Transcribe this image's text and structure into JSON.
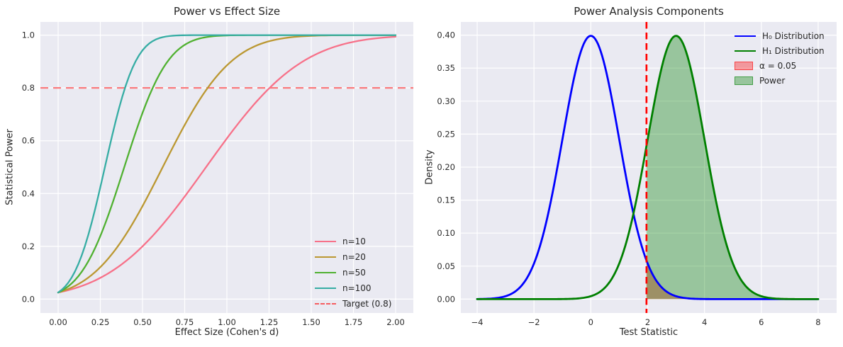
{
  "figure": {
    "background": "#ffffff",
    "axes_background": "#eaeaf2",
    "grid_color": "#ffffff",
    "text_color": "#262626",
    "tick_label_color": "#2b2b2b"
  },
  "chart_data": [
    {
      "type": "line",
      "title": "Power vs Effect Size",
      "xlabel": "Effect Size (Cohen's d)",
      "ylabel": "Statistical Power",
      "xlim": [
        0,
        2
      ],
      "ylim": [
        0,
        1
      ],
      "grid": true,
      "legend_position": "lower right",
      "xticks": {
        "values": [
          0,
          0.25,
          0.5,
          0.75,
          1.0,
          1.25,
          1.5,
          1.75,
          2.0
        ],
        "labels": [
          "0.00",
          "0.25",
          "0.50",
          "0.75",
          "1.00",
          "1.25",
          "1.50",
          "1.75",
          "2.00"
        ]
      },
      "yticks": {
        "values": [
          0,
          0.2,
          0.4,
          0.6,
          0.8,
          1.0
        ],
        "labels": [
          "0.0",
          "0.2",
          "0.4",
          "0.6",
          "0.8",
          "1.0"
        ]
      },
      "alpha": 0.05,
      "z_crit": 1.96,
      "x": [
        0,
        0.25,
        0.5,
        0.75,
        1.0,
        1.25,
        1.5,
        1.75,
        2.0
      ],
      "series": [
        {
          "name": "n=10",
          "n": 10,
          "color": "#f77189",
          "values": [
            0.025,
            0.081,
            0.2,
            0.389,
            0.609,
            0.798,
            0.918,
            0.975,
            0.994
          ]
        },
        {
          "name": "n=20",
          "n": 20,
          "color": "#bb9832",
          "values": [
            0.025,
            0.121,
            0.352,
            0.66,
            0.885,
            0.977,
            0.997,
            1.0,
            1.0
          ]
        },
        {
          "name": "n=50",
          "n": 50,
          "color": "#50b131",
          "values": [
            0.025,
            0.239,
            0.705,
            0.963,
            0.999,
            1.0,
            1.0,
            1.0,
            1.0
          ]
        },
        {
          "name": "n=100",
          "n": 100,
          "color": "#36ada4",
          "values": [
            0.025,
            0.424,
            0.942,
            1.0,
            1.0,
            1.0,
            1.0,
            1.0,
            1.0
          ]
        }
      ],
      "target_line": {
        "label": "Target (0.8)",
        "y": 0.8,
        "color": "#ff0000",
        "opacity": 0.5,
        "linestyle": "dashed"
      }
    },
    {
      "type": "line",
      "title": "Power Analysis Components",
      "xlabel": "Test Statistic",
      "ylabel": "Density",
      "xlim": [
        -4,
        8
      ],
      "ylim": [
        0,
        0.42
      ],
      "grid": true,
      "legend_position": "upper right",
      "xticks": {
        "values": [
          -4,
          -2,
          0,
          2,
          4,
          6,
          8
        ],
        "labels": [
          "−4",
          "−2",
          "0",
          "2",
          "4",
          "6",
          "8"
        ]
      },
      "yticks": {
        "values": [
          0,
          0.05,
          0.1,
          0.15,
          0.2,
          0.25,
          0.3,
          0.35,
          0.4
        ],
        "labels": [
          "0.00",
          "0.05",
          "0.10",
          "0.15",
          "0.20",
          "0.25",
          "0.30",
          "0.35",
          "0.40"
        ]
      },
      "series": [
        {
          "name": "H₀ Distribution",
          "distribution": "normal",
          "mean": 0,
          "sd": 1,
          "peak_density": 0.399,
          "color": "#0000ff"
        },
        {
          "name": "H₁ Distribution",
          "distribution": "normal",
          "mean": 3,
          "sd": 1,
          "peak_density": 0.399,
          "color": "#008000"
        }
      ],
      "critical_value": 1.96,
      "critical_line": {
        "color": "#ff0000",
        "linestyle": "dashed"
      },
      "regions": [
        {
          "name": "α = 0.05",
          "under": "H₀ Distribution",
          "range": [
            1.96,
            8
          ],
          "color": "#ff0000",
          "opacity": 0.35
        },
        {
          "name": "Power",
          "under": "H₁ Distribution",
          "range": [
            1.96,
            8
          ],
          "color": "#008000",
          "opacity": 0.35
        }
      ]
    }
  ]
}
